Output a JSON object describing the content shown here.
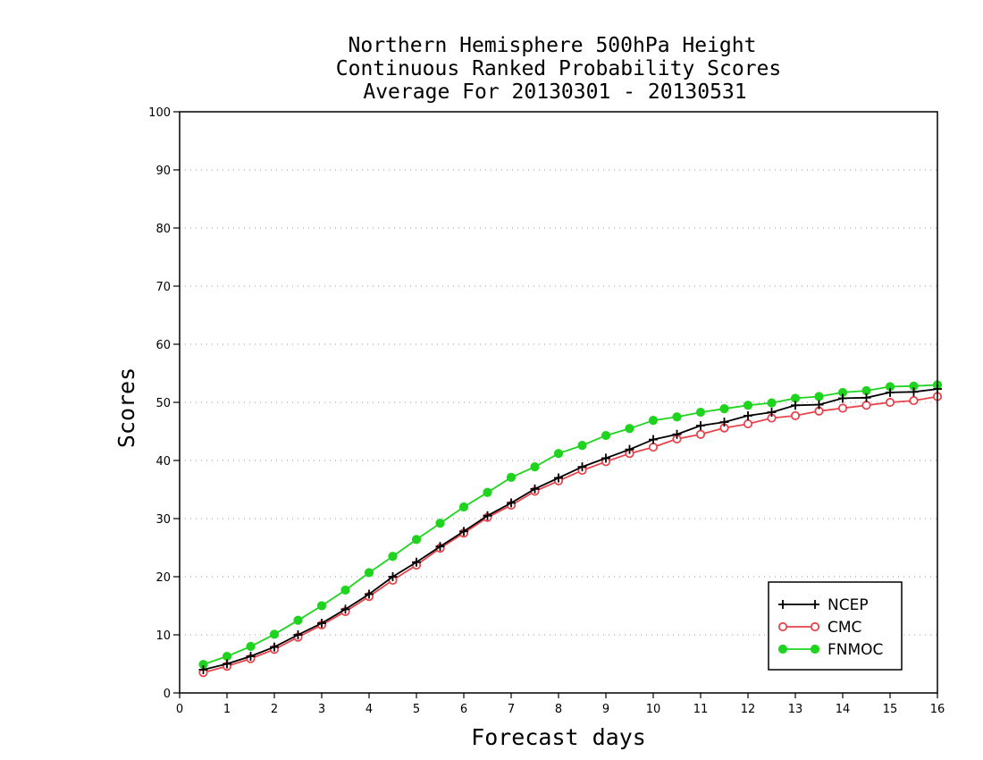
{
  "chart_data": {
    "type": "line",
    "title_lines": [
      "Northern Hemisphere 500hPa Height",
      "Continuous Ranked Probability Scores",
      "Average For 20130301 - 20130531"
    ],
    "xlabel": "Forecast days",
    "ylabel": "Scores",
    "xlim": [
      0,
      16
    ],
    "ylim": [
      0,
      100
    ],
    "xticks": [
      "0",
      "1",
      "2",
      "3",
      "4",
      "5",
      "6",
      "7",
      "8",
      "9",
      "10",
      "11",
      "12",
      "13",
      "14",
      "15",
      "16"
    ],
    "yticks": [
      "0",
      "10",
      "20",
      "30",
      "40",
      "50",
      "60",
      "70",
      "80",
      "90",
      "100"
    ],
    "grid": true,
    "legend_position": "bottom-right",
    "x": [
      0.5,
      1,
      1.5,
      2,
      2.5,
      3,
      3.5,
      4,
      4.5,
      5,
      5.5,
      6,
      6.5,
      7,
      7.5,
      8,
      8.5,
      9,
      9.5,
      10,
      10.5,
      11,
      11.5,
      12,
      12.5,
      13,
      13.5,
      14,
      14.5,
      15,
      15.5,
      16
    ],
    "series": [
      {
        "name": "NCEP",
        "color": "#000000",
        "marker": "plus",
        "values": [
          4.0,
          5.0,
          6.3,
          7.9,
          10.0,
          12.0,
          14.4,
          17.0,
          20.0,
          22.5,
          25.2,
          27.8,
          30.5,
          32.7,
          35.1,
          37.0,
          38.9,
          40.4,
          41.9,
          43.6,
          44.5,
          46.0,
          46.6,
          47.7,
          48.3,
          49.5,
          49.6,
          50.7,
          50.8,
          51.7,
          51.8,
          52.3
        ]
      },
      {
        "name": "CMC",
        "color": "#e8434b",
        "marker": "open-circle",
        "values": [
          3.5,
          4.6,
          5.9,
          7.5,
          9.6,
          11.7,
          14.0,
          16.6,
          19.4,
          22.0,
          24.9,
          27.5,
          30.2,
          32.3,
          34.7,
          36.5,
          38.3,
          39.8,
          41.2,
          42.3,
          43.7,
          44.5,
          45.6,
          46.3,
          47.3,
          47.7,
          48.5,
          49.0,
          49.5,
          50.0,
          50.3,
          51.0
        ]
      },
      {
        "name": "FNMOC",
        "color": "#1ed41e",
        "marker": "filled-circle",
        "values": [
          4.9,
          6.3,
          8.0,
          10.1,
          12.5,
          15.0,
          17.7,
          20.7,
          23.5,
          26.4,
          29.2,
          32.0,
          34.5,
          37.1,
          38.9,
          41.2,
          42.6,
          44.3,
          45.5,
          46.9,
          47.5,
          48.3,
          48.9,
          49.5,
          49.9,
          50.7,
          51.0,
          51.7,
          52.0,
          52.7,
          52.8,
          53.0
        ]
      }
    ]
  }
}
